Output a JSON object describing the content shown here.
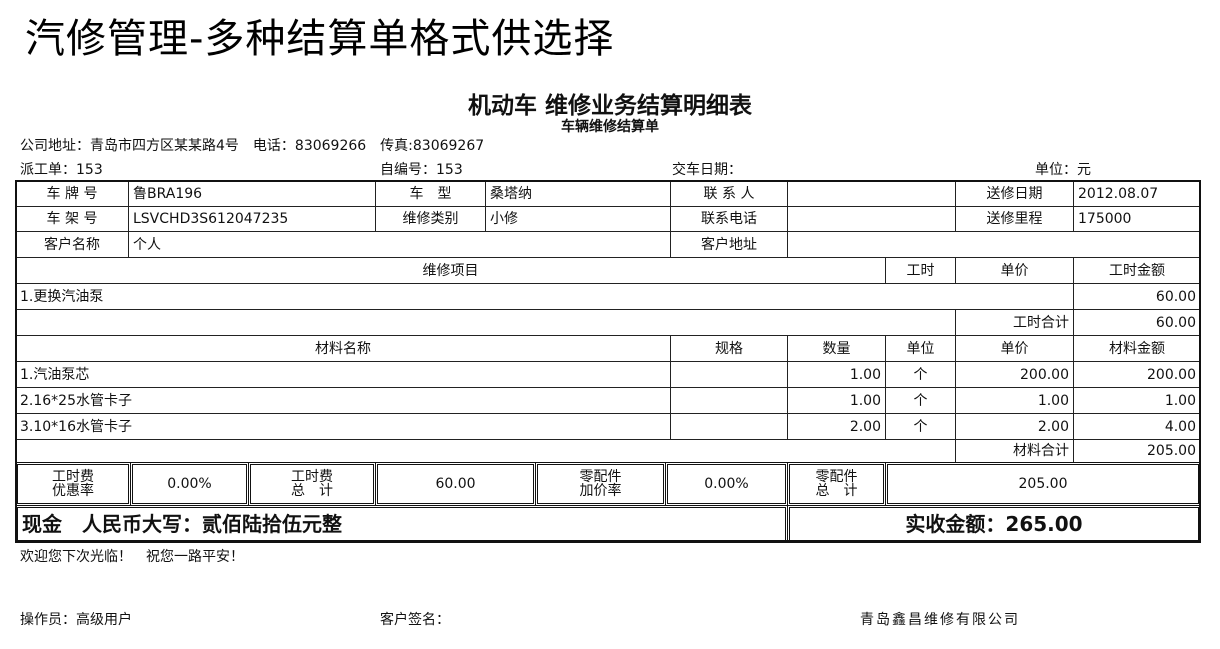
{
  "slide_title": "汽修管理-多种结算单格式供选择",
  "document": {
    "title": "机动车 维修业务结算明细表",
    "subtitle": "车辆维修结算单",
    "address_line": "公司地址：青岛市四方区某某路4号　电话：83069266　传真:83069267",
    "dispatch_no": "派工单：153",
    "self_no": "自编号：153",
    "delivery_date": "交车日期：",
    "unit": "单位：元"
  },
  "vehicle": {
    "plate_label": "车 牌 号",
    "plate": "鲁BRA196",
    "model_label": "车　型",
    "model": "桑塔纳",
    "contact_label": "联 系 人",
    "contact": "",
    "send_date_label": "送修日期",
    "send_date": "2012.08.07",
    "vin_label": "车 架 号",
    "vin": "LSVCHD3S612047235",
    "repair_type_label": "维修类别",
    "repair_type": "小修",
    "phone_label": "联系电话",
    "phone": "",
    "mileage_label": "送修里程",
    "mileage": "175000",
    "customer_label": "客户名称",
    "customer": "个人",
    "cust_addr_label": "客户地址",
    "cust_addr": ""
  },
  "repair": {
    "headers": [
      "维修项目",
      "工时",
      "单价",
      "工时金额"
    ],
    "items": [
      {
        "name": "1.更换汽油泵",
        "hours": "",
        "price": "",
        "amount": "60.00"
      }
    ],
    "total_label": "工时合计",
    "total": "60.00"
  },
  "materials": {
    "headers": [
      "材料名称",
      "规格",
      "数量",
      "单位",
      "单价",
      "材料金额"
    ],
    "items": [
      {
        "name": "1.汽油泵芯",
        "spec": "",
        "qty": "1.00",
        "unit": "个",
        "price": "200.00",
        "amount": "200.00"
      },
      {
        "name": "2.16*25水管卡子",
        "spec": "",
        "qty": "1.00",
        "unit": "个",
        "price": "1.00",
        "amount": "1.00"
      },
      {
        "name": "3.10*16水管卡子",
        "spec": "",
        "qty": "2.00",
        "unit": "个",
        "price": "2.00",
        "amount": "4.00"
      }
    ],
    "total_label": "材料合计",
    "total": "205.00"
  },
  "summary": {
    "labor_discount_label": "工时费\n优惠率",
    "labor_discount": "0.00%",
    "labor_total_label": "工时费\n总　计",
    "labor_total": "60.00",
    "parts_markup_label": "零配件\n加价率",
    "parts_markup": "0.00%",
    "parts_total_label": "零配件\n总　计",
    "parts_total": "205.00",
    "cash_words": "现金　人民币大写：贰佰陆拾伍元整",
    "received": "实收金额：265.00"
  },
  "footer": {
    "farewell": "欢迎您下次光临！　祝您一路平安！",
    "operator": "操作员：高级用户",
    "signature": "客户签名：",
    "company": "青岛鑫昌维修有限公司"
  }
}
